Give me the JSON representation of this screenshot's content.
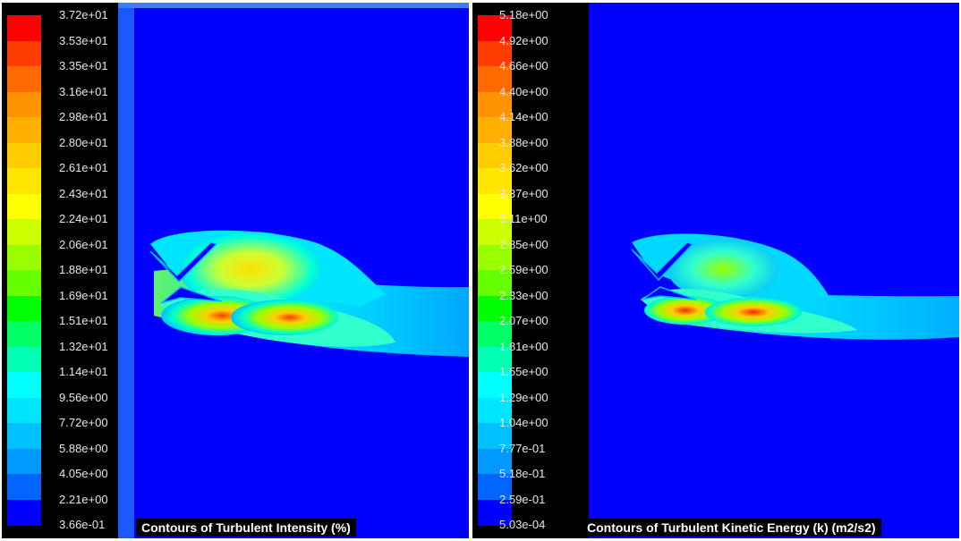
{
  "panels": [
    {
      "title": "Contours of Turbulent Intensity (%)",
      "ticks": [
        "3.72e+01",
        "3.53e+01",
        "3.35e+01",
        "3.16e+01",
        "2.98e+01",
        "2.80e+01",
        "2.61e+01",
        "2.43e+01",
        "2.24e+01",
        "2.06e+01",
        "1.88e+01",
        "1.69e+01",
        "1.51e+01",
        "1.32e+01",
        "1.14e+01",
        "9.56e+00",
        "7.72e+00",
        "5.88e+00",
        "4.05e+00",
        "2.21e+00",
        "3.66e-01"
      ]
    },
    {
      "title": "Contours of Turbulent Kinetic Energy (k) (m2/s2)",
      "ticks": [
        "5.18e+00",
        "4.92e+00",
        "4.66e+00",
        "4.40e+00",
        "4.14e+00",
        "3.88e+00",
        "3.62e+00",
        "3.37e+00",
        "3.11e+00",
        "2.85e+00",
        "2.59e+00",
        "2.33e+00",
        "2.07e+00",
        "1.81e+00",
        "1.55e+00",
        "1.29e+00",
        "1.04e+00",
        "7.77e-01",
        "5.18e-01",
        "2.59e-01",
        "5.03e-04"
      ]
    }
  ],
  "colormap": [
    "#ff0000",
    "#ff3d00",
    "#ff6a00",
    "#ff9400",
    "#ffb000",
    "#ffcc00",
    "#ffe500",
    "#ffff00",
    "#ccff00",
    "#99ff00",
    "#66ff00",
    "#00ff00",
    "#00ff66",
    "#00ffb2",
    "#00ffff",
    "#00e5ff",
    "#00c0ff",
    "#0099ff",
    "#0066ff",
    "#0000ff"
  ],
  "background_color": "#0000ff"
}
